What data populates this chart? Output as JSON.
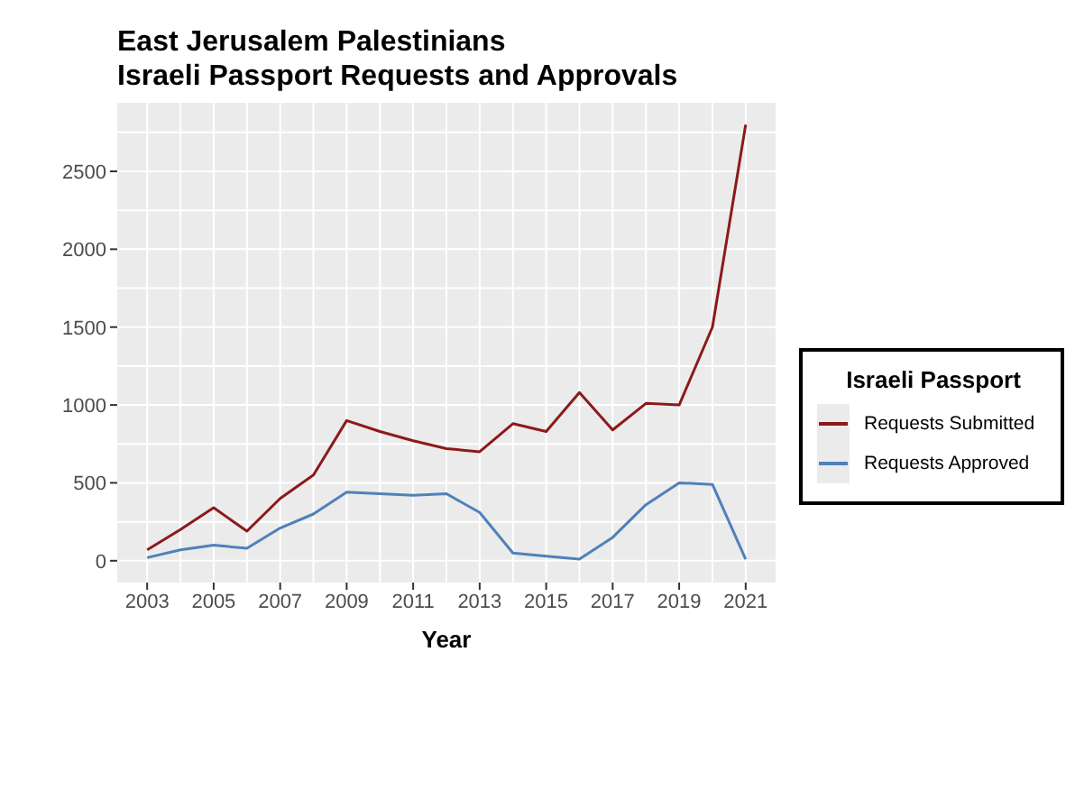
{
  "chart_data": {
    "type": "line",
    "title": "East Jerusalem Palestinians\nIsraeli Passport Requests and Approvals",
    "xlabel": "Year",
    "legend_title": "Israeli Passport",
    "x": [
      2003,
      2004,
      2005,
      2006,
      2007,
      2008,
      2009,
      2010,
      2011,
      2012,
      2013,
      2014,
      2015,
      2016,
      2017,
      2018,
      2019,
      2020,
      2021
    ],
    "series": [
      {
        "name": "Requests Submitted",
        "color": "#8b1a1a",
        "values": [
          70,
          200,
          340,
          190,
          400,
          550,
          900,
          830,
          770,
          720,
          700,
          880,
          830,
          1080,
          840,
          1010,
          1000,
          1500,
          2800
        ]
      },
      {
        "name": "Requests Approved",
        "color": "#4f81b8",
        "values": [
          20,
          70,
          100,
          80,
          210,
          300,
          440,
          430,
          420,
          430,
          310,
          50,
          30,
          10,
          150,
          360,
          500,
          490,
          10
        ]
      }
    ],
    "xlim": [
      2002.1,
      2021.9
    ],
    "xticks": [
      2003,
      2005,
      2007,
      2009,
      2011,
      2013,
      2015,
      2017,
      2019,
      2021
    ],
    "ylim": [
      -140,
      2940
    ],
    "yticks": [
      0,
      500,
      1000,
      1500,
      2000,
      2500
    ],
    "grid": true,
    "legend": "right",
    "marker": "none",
    "line_style": "solid"
  }
}
